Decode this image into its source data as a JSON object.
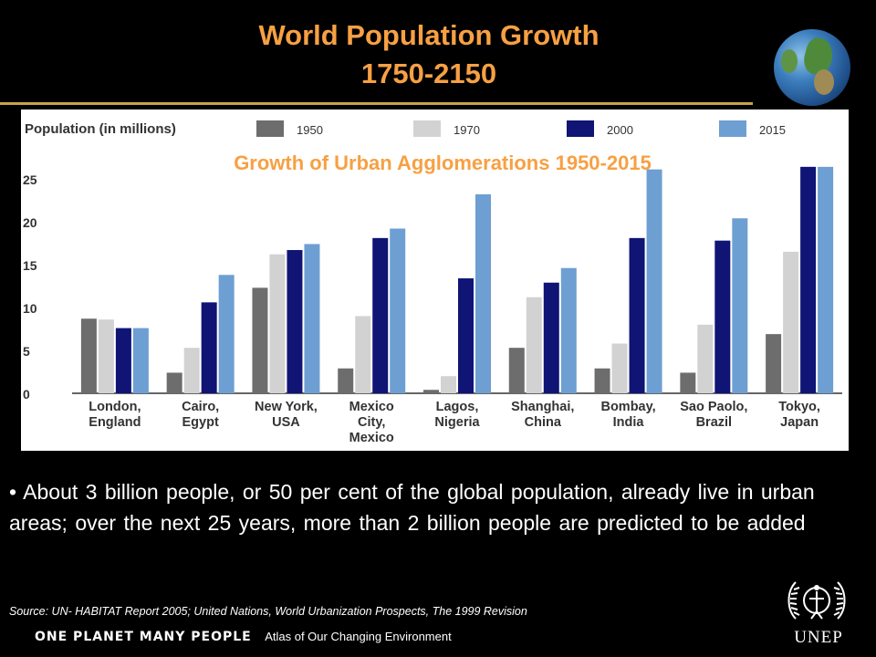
{
  "slide": {
    "title_line1": "World Population Growth",
    "title_line2": "1750-2150",
    "bullet": "• About 3 billion people, or 50 per cent of the global population, already live in urban areas; over the next 25 years, more than 2 billion people are predicted to be added",
    "source": "Source: UN- HABITAT Report 2005; United Nations, World Urbanization Prospects, The 1999 Revision",
    "footer_brand": "ONE PLANET MANY PEOPLE",
    "footer_atlas": "Atlas of Our Changing Environment",
    "logo_text": "UNEP"
  },
  "colors": {
    "title": "#f7a043",
    "background": "#000000",
    "series": [
      "#6d6d6d",
      "#d2d2d2",
      "#0f1475",
      "#6d9fd2"
    ]
  },
  "chart_data": {
    "type": "bar",
    "title": "Growth of Urban Agglomerations 1950-2015",
    "ylabel": "Population (in millions)",
    "ylim": [
      0,
      25
    ],
    "yticks": [
      0,
      5,
      10,
      15,
      20,
      25
    ],
    "legend_position": "top",
    "grid": false,
    "categories": [
      [
        "London,",
        "England"
      ],
      [
        "Cairo,",
        "Egypt"
      ],
      [
        "New York,",
        "USA"
      ],
      [
        "Mexico",
        "City,",
        "Mexico"
      ],
      [
        "Lagos,",
        "Nigeria"
      ],
      [
        "Shanghai,",
        "China"
      ],
      [
        "Bombay,",
        "India"
      ],
      [
        "Sao Paolo,",
        "Brazil"
      ],
      [
        "Tokyo,",
        "Japan"
      ]
    ],
    "series": [
      {
        "name": "1950",
        "values": [
          8.7,
          2.4,
          12.3,
          2.9,
          0.4,
          5.3,
          2.9,
          2.4,
          6.9
        ]
      },
      {
        "name": "1970",
        "values": [
          8.6,
          5.3,
          16.2,
          9.0,
          2.0,
          11.2,
          5.8,
          8.0,
          16.5
        ]
      },
      {
        "name": "2000",
        "values": [
          7.6,
          10.6,
          16.7,
          18.1,
          13.4,
          12.9,
          18.1,
          17.8,
          26.4
        ]
      },
      {
        "name": "2015",
        "values": [
          7.6,
          13.8,
          17.4,
          19.2,
          23.2,
          14.6,
          26.1,
          20.4,
          26.4
        ]
      }
    ]
  }
}
